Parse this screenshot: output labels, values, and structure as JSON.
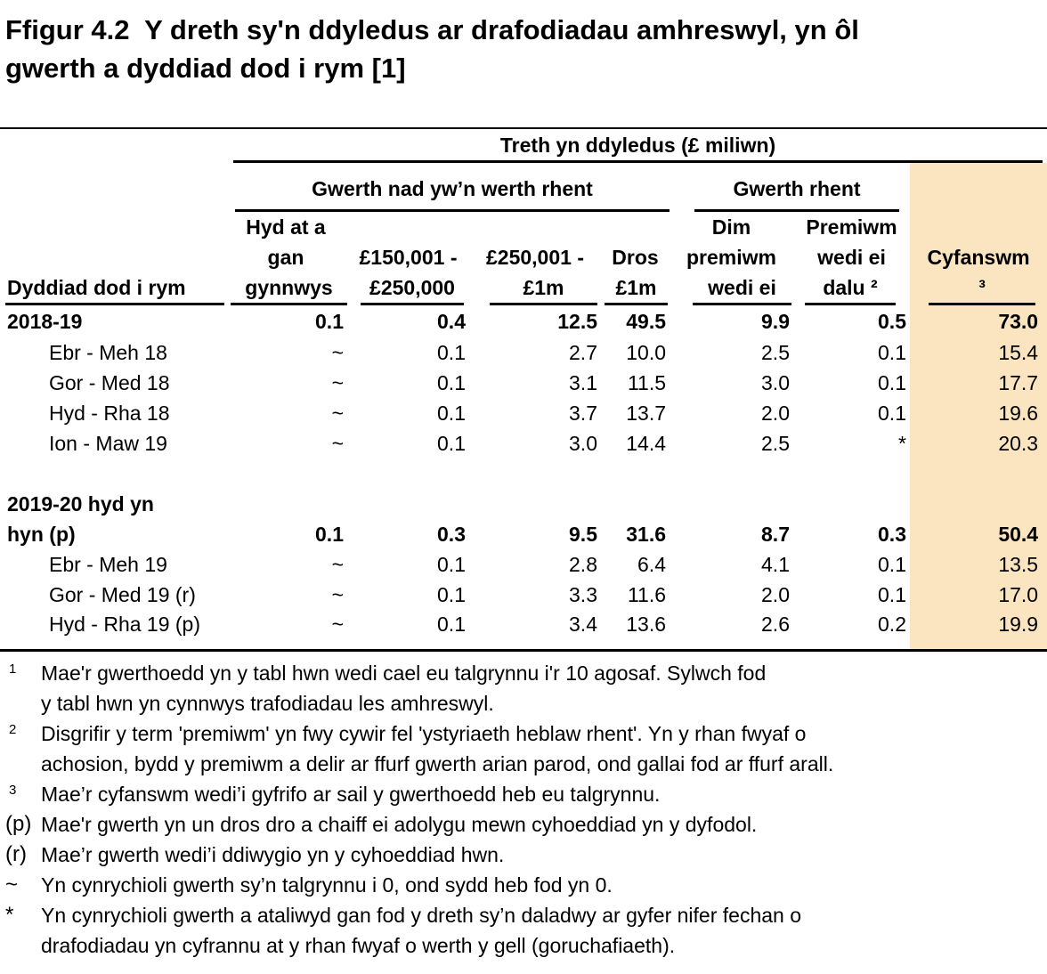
{
  "title": "Ffigur 4.2  Y dreth sy'n ddyledus ar drafodiadau amhreswyl, yn ôl\ngwerth a dyddiad dod i rym [1]",
  "colors": {
    "total_column_bg": "#FBE5C1",
    "text": "#000000",
    "rule": "#000000"
  },
  "table": {
    "top_header": "Treth yn ddyledus (£ miliwn)",
    "groups": {
      "non_rent": "Gwerth nad yw’n werth rhent",
      "rent": "Gwerth rhent"
    },
    "col_headers": {
      "row_a": {
        "c2": "Hyd at a",
        "c6": "Dim",
        "c7": "Premiwm"
      },
      "row_b": {
        "c2": "gan",
        "c3": "£150,001 -",
        "c4": "£250,001 -",
        "c5": "Dros",
        "c6": "premiwm",
        "c7": "wedi ei",
        "c8": "Cyfanswm"
      },
      "row_c": {
        "c1": "Dyddiad dod i rym",
        "c2": "gynnwys",
        "c3": "£250,000",
        "c4": "£1m",
        "c5": "£1m",
        "c6": "wedi ei",
        "c7": "dalu ²",
        "c8": "³"
      }
    },
    "rows": [
      {
        "label": "2018-19",
        "bold": true,
        "values": [
          "0.1",
          "0.4",
          "12.5",
          "49.5",
          "9.9",
          "0.5",
          "73.0"
        ]
      },
      {
        "label": "Ebr - Meh 18",
        "indent": true,
        "values": [
          "~",
          "0.1",
          "2.7",
          "10.0",
          "2.5",
          "0.1",
          "15.4"
        ]
      },
      {
        "label": "Gor - Med 18",
        "indent": true,
        "values": [
          "~",
          "0.1",
          "3.1",
          "11.5",
          "3.0",
          "0.1",
          "17.7"
        ]
      },
      {
        "label": "Hyd - Rha 18",
        "indent": true,
        "values": [
          "~",
          "0.1",
          "3.7",
          "13.7",
          "2.0",
          "0.1",
          "19.6"
        ]
      },
      {
        "label": "Ion - Maw 19",
        "indent": true,
        "values": [
          "~",
          "0.1",
          "3.0",
          "14.4",
          "2.5",
          "*",
          "20.3"
        ]
      },
      {
        "label": "",
        "spacer": true,
        "values": [
          "",
          "",
          "",
          "",
          "",
          "",
          ""
        ]
      },
      {
        "label": "2019-20 hyd yn",
        "bold": true,
        "values": [
          "",
          "",
          "",
          "",
          "",
          "",
          ""
        ]
      },
      {
        "label": "hyn (p)",
        "bold": true,
        "values": [
          "0.1",
          "0.3",
          "9.5",
          "31.6",
          "8.7",
          "0.3",
          "50.4"
        ]
      },
      {
        "label": "Ebr - Meh 19",
        "indent": true,
        "values": [
          "~",
          "0.1",
          "2.8",
          "6.4",
          "4.1",
          "0.1",
          "13.5"
        ]
      },
      {
        "label": "Gor - Med 19 (r)",
        "indent": true,
        "values": [
          "~",
          "0.1",
          "3.3",
          "11.6",
          "2.0",
          "0.1",
          "17.0"
        ]
      },
      {
        "label": "Hyd - Rha 19 (p)",
        "indent": true,
        "values": [
          "~",
          "0.1",
          "3.4",
          "13.6",
          "2.6",
          "0.2",
          "19.9"
        ]
      }
    ]
  },
  "footnotes": [
    {
      "marker": "1",
      "sup": true,
      "text": "Mae'r gwerthoedd yn y tabl hwn wedi cael eu talgrynnu i'r 10 agosaf. Sylwch fod\ny tabl hwn yn cynnwys trafodiadau les amhreswyl."
    },
    {
      "marker": "2",
      "sup": true,
      "text": "Disgrifir y term 'premiwm' yn fwy cywir fel 'ystyriaeth heblaw rhent'. Yn y rhan fwyaf o\nachosion, bydd y premiwm a delir ar ffurf gwerth arian parod, ond gallai fod ar ffurf arall."
    },
    {
      "marker": "3",
      "sup": true,
      "text": "Mae’r cyfanswm wedi’i gyfrifo ar sail y gwerthoedd heb eu talgrynnu."
    },
    {
      "marker": "(p)",
      "sup": false,
      "text": "Mae'r gwerth yn un dros dro a chaiff ei adolygu mewn cyhoeddiad yn y dyfodol."
    },
    {
      "marker": "(r)",
      "sup": false,
      "text": "Mae’r gwerth wedi’i ddiwygio yn y cyhoeddiad hwn."
    },
    {
      "marker": "~",
      "sup": false,
      "text": "Yn cynrychioli gwerth sy’n talgrynnu i 0, ond sydd heb fod yn 0."
    },
    {
      "marker": "*",
      "sup": false,
      "text": "Yn cynrychioli gwerth a ataliwyd gan fod y dreth sy’n daladwy ar gyfer nifer fechan o\ndrafodiadau yn cyfrannu at y rhan fwyaf o werth y gell (goruchafiaeth)."
    }
  ]
}
